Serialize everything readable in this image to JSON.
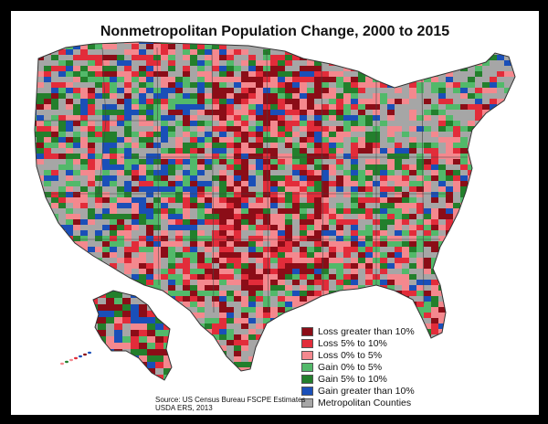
{
  "title": "Nonmetropolitan Population Change, 2000 to 2015",
  "legend": {
    "items": [
      {
        "label": "Loss greater than 10%",
        "color": "#8b0d17"
      },
      {
        "label": "Loss 5% to 10%",
        "color": "#e22c3a"
      },
      {
        "label": "Loss 0% to 5%",
        "color": "#f4888e"
      },
      {
        "label": "Gain 0% to 5%",
        "color": "#52b96a"
      },
      {
        "label": "Gain 5% to 10%",
        "color": "#237f2c"
      },
      {
        "label": "Gain greater than 10%",
        "color": "#1a4fb8"
      },
      {
        "label": "Metropolitan Counties",
        "color": "#a6a6a6"
      }
    ]
  },
  "source": {
    "line1": "Source:  US Census Bureau FSCPE Estimates",
    "line2": "USDA ERS, 2013"
  },
  "colors": {
    "metro": "#a6a6a6",
    "border": "#333333",
    "frame": "#000000"
  }
}
